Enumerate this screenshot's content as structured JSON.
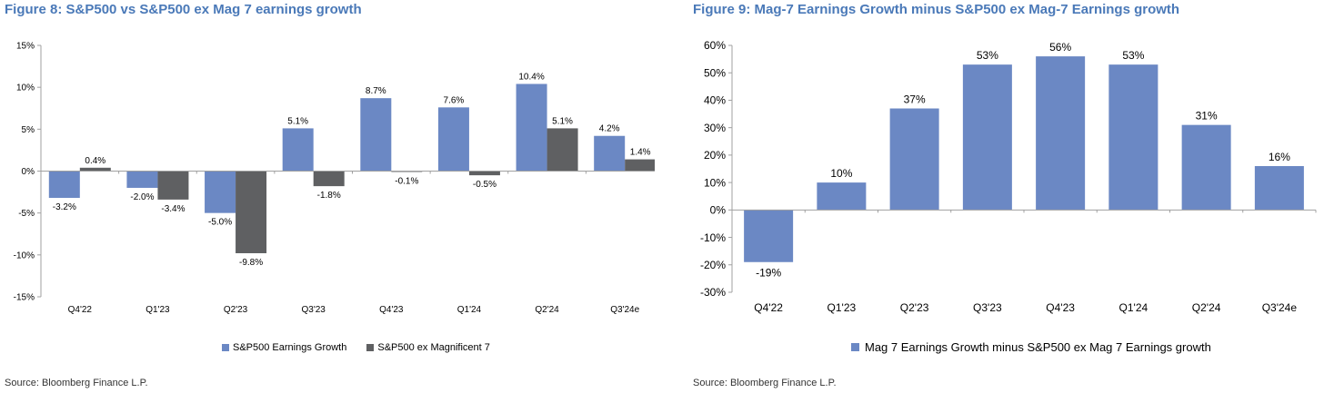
{
  "fig1": {
    "title": "Figure 8: S&P500 vs S&P500 ex Mag 7 earnings growth",
    "source": "Source: Bloomberg Finance L.P."
  },
  "fig2": {
    "title": "Figure 9: Mag-7 Earnings Growth minus S&P500 ex Mag-7 Earnings growth",
    "source": "Source: Bloomberg Finance L.P."
  },
  "colors": {
    "blue": "#6b88c4",
    "gray": "#5f6062"
  },
  "chart_data": [
    {
      "type": "bar",
      "title": "Figure 8: S&P500 vs S&P500 ex Mag 7 earnings growth",
      "categories": [
        "Q4'22",
        "Q1'23",
        "Q2'23",
        "Q3'23",
        "Q4'23",
        "Q1'24",
        "Q2'24",
        "Q3'24e"
      ],
      "series": [
        {
          "name": "S&P500 Earnings Growth",
          "color": "#6b88c4",
          "values": [
            -3.2,
            -2.0,
            -5.0,
            5.1,
            8.7,
            7.6,
            10.4,
            4.2
          ],
          "labels": [
            "-3.2%",
            "-2.0%",
            "-5.0%",
            "5.1%",
            "8.7%",
            "7.6%",
            "10.4%",
            "4.2%"
          ]
        },
        {
          "name": "S&P500 ex Magnificent 7",
          "color": "#5f6062",
          "values": [
            0.4,
            -3.4,
            -9.8,
            -1.8,
            -0.1,
            -0.5,
            5.1,
            1.4
          ],
          "labels": [
            "0.4%",
            "-3.4%",
            "-9.8%",
            "-1.8%",
            "-0.1%",
            "-0.5%",
            "5.1%",
            "1.4%"
          ]
        }
      ],
      "ylim": [
        -15,
        15
      ],
      "yticks": [
        15,
        10,
        5,
        0,
        -5,
        -10,
        -15
      ],
      "ytick_labels": [
        "15%",
        "10%",
        "5%",
        "0%",
        "-5%",
        "-10%",
        "-15%"
      ],
      "grid": false,
      "legend": "bottom"
    },
    {
      "type": "bar",
      "title": "Figure 9: Mag-7 Earnings Growth minus S&P500 ex Mag-7 Earnings growth",
      "categories": [
        "Q4'22",
        "Q1'23",
        "Q2'23",
        "Q3'23",
        "Q4'23",
        "Q1'24",
        "Q2'24",
        "Q3'24e"
      ],
      "series": [
        {
          "name": "Mag 7 Earnings Growth minus S&P500 ex Mag 7 Earnings growth",
          "color": "#6b88c4",
          "values": [
            -19,
            10,
            37,
            53,
            56,
            53,
            31,
            16
          ],
          "labels": [
            "-19%",
            "10%",
            "37%",
            "53%",
            "56%",
            "53%",
            "31%",
            "16%"
          ]
        }
      ],
      "ylim": [
        -30,
        60
      ],
      "yticks": [
        60,
        50,
        40,
        30,
        20,
        10,
        0,
        -10,
        -20,
        -30
      ],
      "ytick_labels": [
        "60%",
        "50%",
        "40%",
        "30%",
        "20%",
        "10%",
        "0%",
        "-10%",
        "-20%",
        "-30%"
      ],
      "grid": false,
      "legend": "bottom"
    }
  ]
}
